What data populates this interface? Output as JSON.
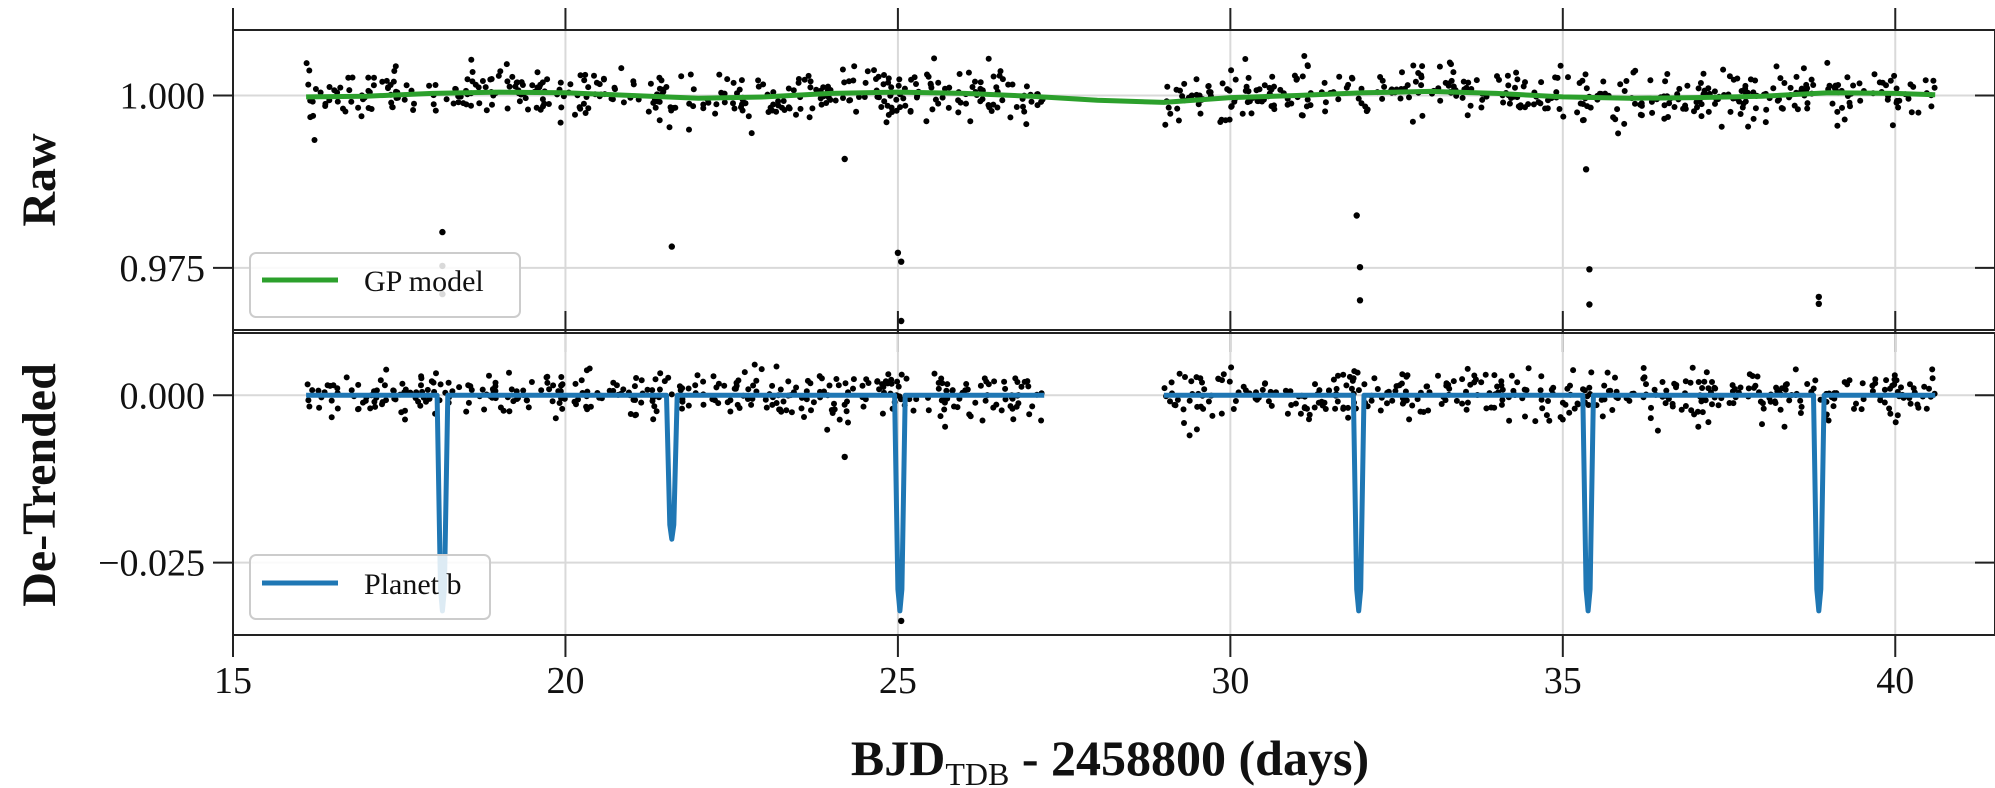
{
  "chart_data": [
    {
      "panel": "top",
      "type": "scatter",
      "ylabel": "Raw",
      "xlim": [
        15,
        41.5
      ],
      "ylim": [
        0.966,
        1.0095
      ],
      "xticks": [
        "15",
        "20",
        "25",
        "30",
        "35",
        "40"
      ],
      "yticks": [
        {
          "value": 1.0,
          "label": "1.000"
        },
        {
          "value": 0.975,
          "label": "0.975"
        }
      ],
      "grid": true,
      "legend_placement": "lower-left",
      "colors": {
        "points": "#000000",
        "model": "#2ca02c",
        "grid": "#d9d9d9"
      },
      "series": [
        {
          "name": "GP model",
          "type": "line",
          "x": [
            16.1,
            17.0,
            18.0,
            19.0,
            20.0,
            21.0,
            22.0,
            23.0,
            24.0,
            25.0,
            26.0,
            27.0,
            28.0,
            29.0,
            30.0,
            31.0,
            32.0,
            33.0,
            34.0,
            35.0,
            36.0,
            37.0,
            38.0,
            39.0,
            40.0,
            40.6
          ],
          "y": [
            0.9998,
            0.9999,
            1.0003,
            1.0005,
            1.0004,
            1.0,
            0.9996,
            0.9998,
            1.0003,
            1.0005,
            1.0003,
            0.9999,
            0.9993,
            0.999,
            0.9997,
            1.0,
            1.0004,
            1.0006,
            1.0003,
            0.9998,
            0.9996,
            0.9997,
            0.9999,
            1.0004,
            1.0003,
            1.0001
          ]
        }
      ],
      "scatter": {
        "segments": [
          [
            16.1,
            27.2
          ],
          [
            29.0,
            40.6
          ]
        ],
        "noise_sd": 0.0018,
        "outliers": [
          {
            "x": 18.15,
            "y": 0.9802
          },
          {
            "x": 18.15,
            "y": 0.9753
          },
          {
            "x": 18.15,
            "y": 0.9712
          },
          {
            "x": 21.6,
            "y": 0.9781
          },
          {
            "x": 24.2,
            "y": 0.9908
          },
          {
            "x": 25.0,
            "y": 0.9772
          },
          {
            "x": 25.05,
            "y": 0.9759
          },
          {
            "x": 25.05,
            "y": 0.9673
          },
          {
            "x": 31.9,
            "y": 0.9826
          },
          {
            "x": 31.95,
            "y": 0.9751
          },
          {
            "x": 31.95,
            "y": 0.9703
          },
          {
            "x": 35.35,
            "y": 0.9893
          },
          {
            "x": 35.4,
            "y": 0.9748
          },
          {
            "x": 35.4,
            "y": 0.9697
          },
          {
            "x": 38.85,
            "y": 0.9708
          },
          {
            "x": 38.85,
            "y": 0.9698
          }
        ]
      }
    },
    {
      "panel": "bottom",
      "type": "scatter",
      "ylabel": "De-Trended",
      "xlabel_main": "BJD",
      "xlabel_sub": "TDB",
      "xlabel_rest": " - 2458800 (days)",
      "xlim": [
        15,
        41.5
      ],
      "ylim": [
        -0.0358,
        0.0093
      ],
      "xticks": [
        "15",
        "20",
        "25",
        "30",
        "35",
        "40"
      ],
      "yticks": [
        {
          "value": 0.0,
          "label": "0.000"
        },
        {
          "value": -0.025,
          "label": "−0.025"
        }
      ],
      "grid": true,
      "legend_placement": "lower-left",
      "colors": {
        "points": "#000000",
        "model": "#1f77b4",
        "grid": "#d9d9d9"
      },
      "series": [
        {
          "name": "Planet b",
          "type": "line",
          "segments": [
            [
              16.1,
              27.2
            ],
            [
              29.0,
              40.6
            ]
          ],
          "transits": [
            {
              "t0": 18.15,
              "depth": -0.0322
            },
            {
              "t0": 21.6,
              "depth": -0.0215
            },
            {
              "t0": 25.03,
              "depth": -0.0322
            },
            {
              "t0": 31.93,
              "depth": -0.0322
            },
            {
              "t0": 35.38,
              "depth": -0.0322
            },
            {
              "t0": 38.85,
              "depth": -0.0322
            }
          ]
        }
      ],
      "scatter": {
        "segments": [
          [
            16.1,
            27.2
          ],
          [
            29.0,
            40.6
          ]
        ],
        "noise_sd": 0.0018,
        "outliers": [
          {
            "x": 25.05,
            "y": -0.0337
          },
          {
            "x": 38.85,
            "y": -0.0307
          },
          {
            "x": 24.2,
            "y": -0.0092
          }
        ]
      }
    }
  ]
}
